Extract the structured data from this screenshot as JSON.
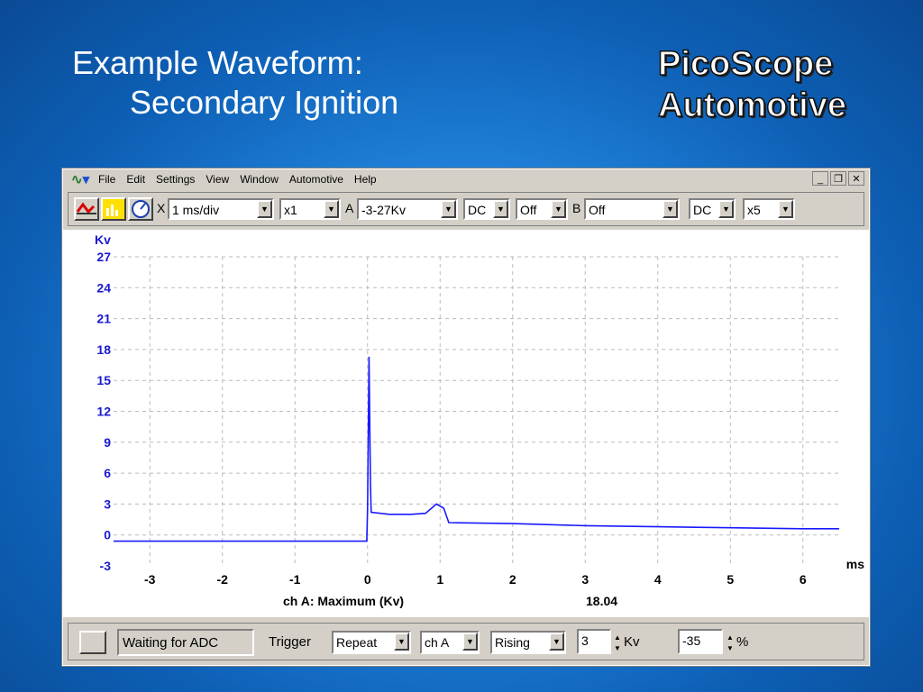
{
  "slide": {
    "title_line1": "Example Waveform:",
    "title_line2": "Secondary Ignition",
    "logo_line1": "PicoScope",
    "logo_line2": "Automotive"
  },
  "window": {
    "menu": [
      "File",
      "Edit",
      "Settings",
      "View",
      "Window",
      "Automotive",
      "Help"
    ],
    "controls": [
      "minimize",
      "restore",
      "close"
    ]
  },
  "toolbar": {
    "icons": [
      "scope-mode-icon",
      "spectrum-mode-icon",
      "meter-mode-icon"
    ],
    "x_label": "X",
    "timebase": "1 ms/div",
    "x_mult": "x1",
    "a_label": "A",
    "a_range": "-3-27Kv",
    "a_coupling": "DC",
    "a_offset": "Off",
    "b_label": "B",
    "b_range": "Off",
    "b_coupling": "DC",
    "b_mult": "x5"
  },
  "chart_data": {
    "type": "line",
    "ylabel": "Kv",
    "xlabel": "ms",
    "xlim": [
      -3.5,
      6.5
    ],
    "ylim": [
      -3,
      27
    ],
    "xticks": [
      -3,
      -2,
      -1,
      0,
      1,
      2,
      3,
      4,
      5,
      6
    ],
    "yticks": [
      27,
      24,
      21,
      18,
      15,
      12,
      9,
      6,
      3,
      0,
      -3
    ],
    "grid": true,
    "color": "#1a1aff",
    "series": [
      {
        "x": [
          -3.5,
          -2.5,
          -1.5,
          -0.5,
          -0.01,
          0.0,
          0.02,
          0.03,
          0.04,
          0.05,
          0.3,
          0.6,
          0.8,
          0.95,
          1.05,
          1.12,
          2.0,
          3.0,
          4.0,
          5.0,
          6.0,
          6.5
        ],
        "y": [
          -0.6,
          -0.6,
          -0.6,
          -0.6,
          -0.6,
          2.6,
          17.3,
          11.0,
          5.0,
          2.2,
          2.0,
          2.0,
          2.1,
          3.0,
          2.6,
          1.2,
          1.1,
          0.9,
          0.8,
          0.7,
          0.6,
          0.6
        ]
      }
    ],
    "measurement_label": "ch A: Maximum (Kv)",
    "measurement_value": "18.04"
  },
  "status": {
    "message": "Waiting for ADC",
    "trigger_label": "Trigger",
    "trigger_mode": "Repeat",
    "trigger_channel": "ch A",
    "trigger_edge": "Rising",
    "trigger_level": "3",
    "trigger_unit": "Kv",
    "pretrigger": "-35",
    "pretrigger_unit": "%"
  }
}
